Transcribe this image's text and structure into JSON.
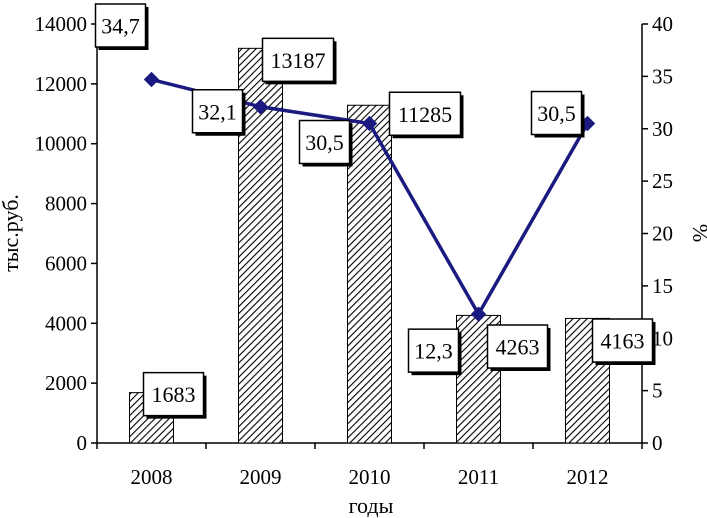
{
  "chart_data": {
    "type": "bar",
    "categories": [
      "2008",
      "2009",
      "2010",
      "2011",
      "2012"
    ],
    "xlabel": "годы",
    "ylabel_left": "тыс.руб.",
    "ylabel_right": "%",
    "ylim_left": [
      0,
      14000
    ],
    "yticks_left": [
      "0",
      "2000",
      "4000",
      "6000",
      "8000",
      "10000",
      "12000",
      "14000"
    ],
    "ylim_right": [
      0,
      40
    ],
    "yticks_right": [
      "0",
      "5",
      "10",
      "15",
      "20",
      "25",
      "30",
      "35",
      "40"
    ],
    "grid": false,
    "legend": "none",
    "series": [
      {
        "kind": "bar",
        "axis": "left",
        "values": [
          1683,
          13187,
          11285,
          4263,
          4163
        ],
        "labels": [
          "1683",
          "13187",
          "11285",
          "4263",
          "4163"
        ],
        "fill": "hatched"
      },
      {
        "kind": "line",
        "axis": "right",
        "values": [
          34.7,
          32.1,
          30.5,
          12.3,
          30.5
        ],
        "labels": [
          "34,7",
          "32,1",
          "30,5",
          "12,3",
          "30,5"
        ],
        "color": "#1a1a80",
        "marker": "diamond"
      }
    ]
  }
}
